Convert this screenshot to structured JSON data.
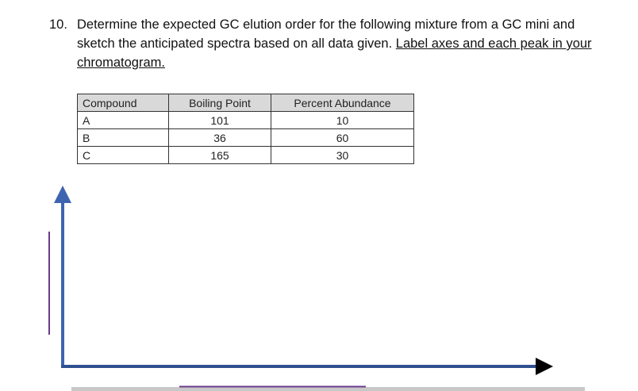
{
  "question": {
    "number": "10.",
    "line1": "Determine the expected GC elution order for the following mixture from a GC mini and",
    "line2": "sketch the anticipated spectra based on all data given.",
    "line2_underlined": "Label axes and each peak in your",
    "line3_underlined": "chromatogram."
  },
  "table": {
    "headers": [
      "Compound",
      "Boiling Point",
      "Percent Abundance"
    ],
    "rows": [
      [
        "A",
        101,
        10
      ],
      [
        "B",
        36,
        60
      ],
      [
        "C",
        165,
        30
      ]
    ]
  }
}
